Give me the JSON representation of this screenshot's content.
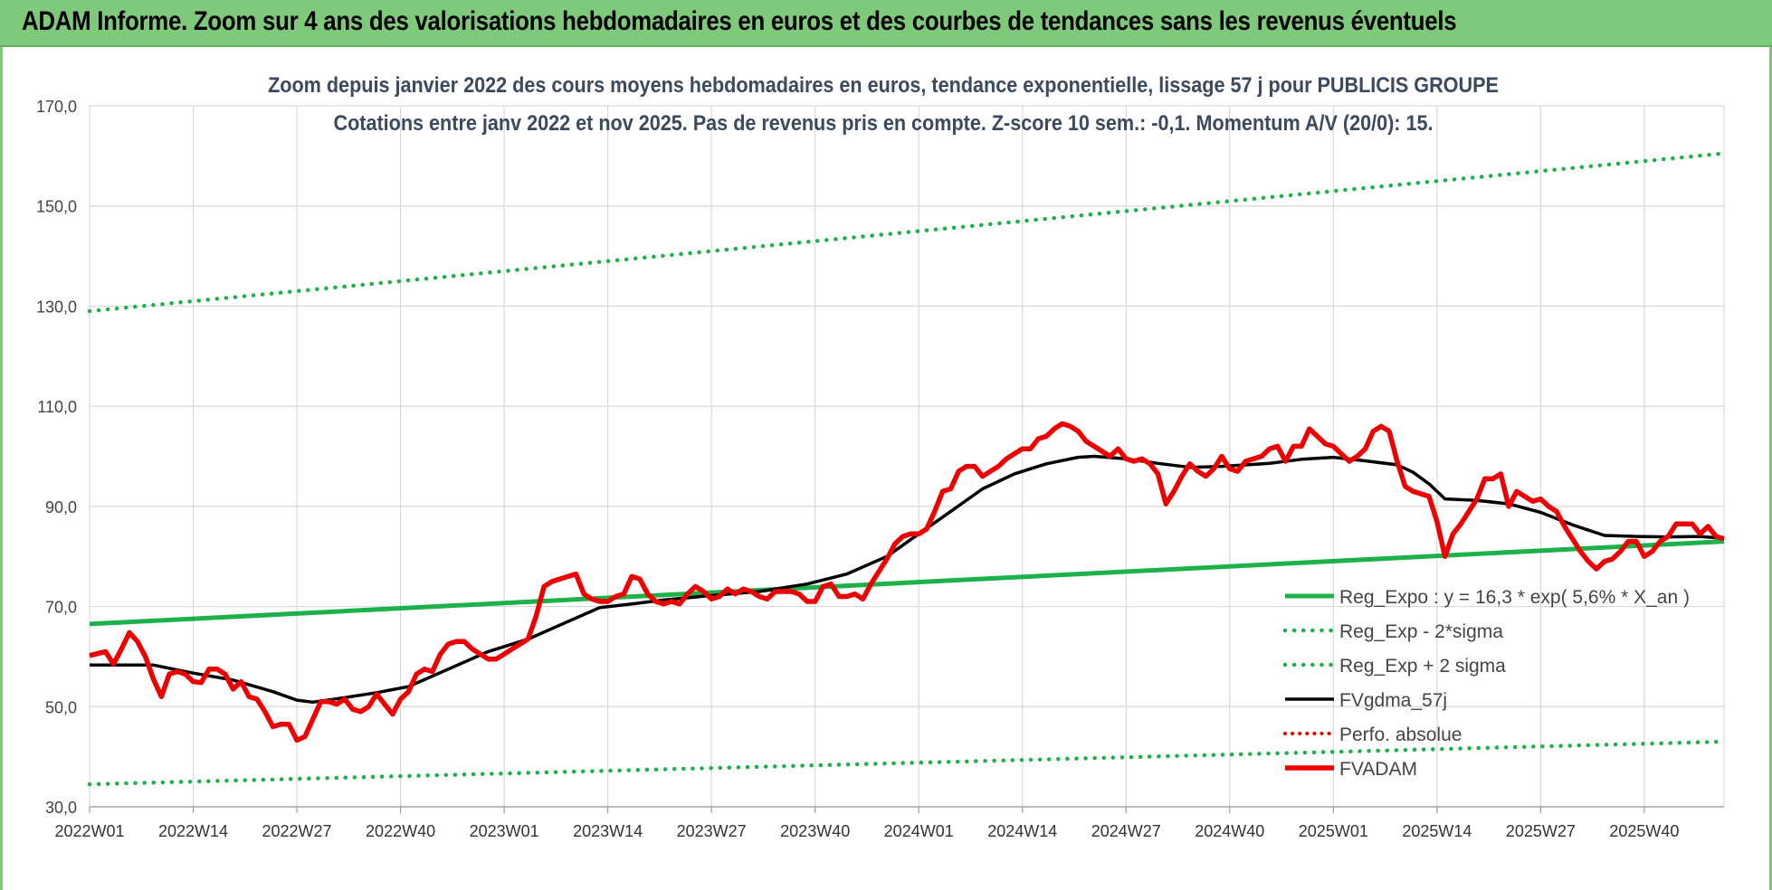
{
  "header": {
    "banner_title": "ADAM Informe. Zoom sur 4 ans des valorisations hebdomadaires en euros et des courbes de tendances sans les revenus éventuels"
  },
  "chart_data": {
    "type": "line",
    "title_line1": "Zoom depuis janvier 2022 des cours moyens hebdomadaires en euros, tendance exponentielle, lissage 57 j pour PUBLICIS GROUPE",
    "title_line2": "Cotations entre janv 2022 et nov 2025. Pas de revenus pris en compte. Z-score 10 sem.: -0,1. Momentum A/V (20/0): 15.",
    "ylim": [
      30,
      170
    ],
    "y_ticks": [
      "30,0",
      "50,0",
      "70,0",
      "90,0",
      "110,0",
      "130,0",
      "150,0",
      "170,0"
    ],
    "x_ticks": [
      "2022W01",
      "2022W14",
      "2022W27",
      "2022W40",
      "2023W01",
      "2023W14",
      "2023W27",
      "2023W40",
      "2024W01",
      "2024W14",
      "2024W27",
      "2024W40",
      "2025W01",
      "2025W14",
      "2025W27",
      "2025W40"
    ],
    "x_tick_weeks": [
      0,
      13,
      26,
      39,
      52,
      65,
      78,
      91,
      104,
      117,
      130,
      143,
      156,
      169,
      182,
      195
    ],
    "x_range_weeks": [
      0,
      205
    ],
    "grid": "vertical and horizontal light gray",
    "legend_position": "bottom-right",
    "colors": {
      "reg_expo": "#1db14a",
      "reg_minus": "#1db14a",
      "reg_plus": "#1db14a",
      "fvgdma": "#000000",
      "perfo": "#e00000",
      "fvadam": "#ee0000",
      "grid": "#d9d9d9"
    },
    "series": [
      {
        "name": "Reg_Expo : y = 16,3 * exp( 5,6% *  X_an )",
        "style": "solid-thick",
        "x": [
          0,
          205
        ],
        "values": [
          66.5,
          83.0
        ]
      },
      {
        "name": "Reg_Exp - 2*sigma",
        "style": "dotted",
        "x": [
          0,
          205
        ],
        "values": [
          34.5,
          43.0
        ]
      },
      {
        "name": "Reg_Exp + 2 sigma",
        "style": "dotted",
        "x": [
          0,
          205
        ],
        "values": [
          129.0,
          160.5
        ]
      },
      {
        "name": "FVgdma_57j",
        "style": "solid-medium",
        "x": [
          0,
          8,
          13,
          18,
          23,
          26,
          28,
          32,
          36,
          40,
          45,
          50,
          55,
          60,
          64,
          68,
          72,
          78,
          84,
          90,
          95,
          100,
          104,
          108,
          112,
          116,
          120,
          124,
          126,
          130,
          134,
          138,
          142,
          148,
          152,
          156,
          160,
          164,
          166,
          168,
          170,
          174,
          178,
          182,
          186,
          190,
          194,
          198,
          202,
          205
        ],
        "values": [
          58.3,
          58.3,
          56.7,
          55.3,
          53.0,
          51.3,
          50.9,
          51.8,
          52.8,
          54.0,
          57.5,
          61.0,
          63.5,
          67.0,
          69.8,
          70.5,
          71.3,
          72.2,
          73.0,
          74.5,
          76.5,
          80.0,
          84.5,
          89.0,
          93.5,
          96.5,
          98.5,
          99.8,
          100.0,
          99.5,
          98.6,
          97.8,
          98.0,
          98.6,
          99.4,
          99.8,
          99.1,
          98.3,
          96.8,
          94.5,
          91.5,
          91.2,
          90.5,
          88.8,
          86.3,
          84.2,
          84.0,
          83.9,
          84.0,
          83.6
        ],
        "_": 0
      },
      {
        "name": "Perfo. absolue",
        "style": "dotted-red",
        "x": [],
        "values": []
      },
      {
        "name": "FVADAM",
        "style": "solid-thick-red",
        "x": [
          0,
          2,
          3,
          4,
          5,
          6,
          7,
          8,
          9,
          10,
          11,
          12,
          13,
          14,
          15,
          16,
          17,
          18,
          19,
          20,
          21,
          22,
          23,
          24,
          25,
          26,
          27,
          28,
          29,
          30,
          31,
          32,
          33,
          34,
          35,
          36,
          37,
          38,
          39,
          40,
          41,
          42,
          43,
          44,
          45,
          46,
          47,
          48,
          49,
          50,
          51,
          52,
          53,
          54,
          55,
          56,
          57,
          58,
          59,
          60,
          61,
          62,
          63,
          64,
          65,
          66,
          67,
          68,
          69,
          70,
          71,
          72,
          73,
          74,
          75,
          76,
          77,
          78,
          79,
          80,
          81,
          82,
          83,
          84,
          85,
          86,
          87,
          88,
          89,
          90,
          91,
          92,
          93,
          94,
          95,
          96,
          97,
          98,
          99,
          100,
          101,
          102,
          103,
          104,
          105,
          106,
          107,
          108,
          109,
          110,
          111,
          112,
          113,
          114,
          115,
          116,
          117,
          118,
          119,
          120,
          121,
          122,
          123,
          124,
          125,
          126,
          127,
          128,
          129,
          130,
          131,
          132,
          133,
          134,
          135,
          136,
          137,
          138,
          139,
          140,
          141,
          142,
          143,
          144,
          145,
          146,
          147,
          148,
          149,
          150,
          151,
          152,
          153,
          154,
          155,
          156,
          157,
          158,
          159,
          160,
          161,
          162,
          163,
          164,
          165,
          166,
          167,
          168,
          169,
          170,
          171,
          172,
          173,
          174,
          175,
          176,
          177,
          178,
          179,
          180,
          181,
          182,
          183,
          184,
          185,
          186,
          187,
          188,
          189,
          190,
          191,
          192,
          193,
          194,
          195,
          196,
          197,
          198,
          199,
          200,
          201,
          202,
          203,
          204,
          205
        ],
        "values": [
          60.2,
          61.0,
          58.5,
          61.5,
          64.8,
          63.0,
          60.0,
          55.5,
          52.0,
          56.5,
          57.0,
          56.5,
          55.0,
          54.8,
          57.5,
          57.5,
          56.5,
          53.5,
          55.0,
          52.0,
          51.5,
          49.0,
          46.0,
          46.5,
          46.5,
          43.3,
          44.0,
          47.5,
          51.0,
          51.0,
          50.5,
          51.5,
          49.5,
          49.0,
          50.0,
          52.5,
          50.5,
          48.5,
          51.5,
          53.0,
          56.5,
          57.5,
          57.0,
          60.5,
          62.5,
          63.0,
          63.0,
          61.5,
          60.5,
          59.5,
          59.5,
          60.5,
          61.5,
          62.5,
          63.5,
          68.0,
          74.0,
          75.0,
          75.5,
          76.0,
          76.5,
          72.5,
          71.5,
          71.0,
          71.0,
          72.0,
          72.5,
          76.0,
          75.5,
          72.5,
          71.0,
          70.5,
          71.0,
          70.5,
          72.5,
          74.0,
          73.0,
          71.5,
          72.0,
          73.5,
          72.5,
          73.5,
          73.0,
          72.0,
          71.5,
          73.0,
          73.0,
          73.0,
          72.5,
          71.0,
          71.0,
          74.0,
          74.5,
          72.0,
          72.0,
          72.5,
          71.5,
          74.5,
          77.0,
          79.5,
          82.5,
          84.0,
          84.5,
          84.5,
          85.5,
          89.0,
          93.0,
          93.5,
          97.0,
          98.0,
          98.0,
          96.0,
          97.0,
          98.0,
          99.5,
          100.5,
          101.5,
          101.5,
          103.5,
          104.0,
          105.5,
          106.5,
          106.0,
          105.0,
          103.0,
          102.0,
          101.0,
          100.0,
          101.5,
          99.5,
          99.0,
          99.5,
          98.5,
          96.5,
          90.5,
          93.0,
          96.0,
          98.5,
          97.0,
          96.0,
          97.5,
          100.0,
          97.5,
          97.0,
          99.0,
          99.5,
          100.0,
          101.5,
          102.0,
          99.0,
          102.0,
          102.0,
          105.5,
          104.0,
          102.5,
          102.0,
          100.5,
          99.0,
          100.0,
          101.5,
          105.0,
          106.0,
          105.0,
          99.0,
          94.0,
          93.0,
          92.5,
          92.0,
          87.0,
          80.0,
          84.5,
          86.5,
          89.0,
          91.5,
          95.5,
          95.5,
          96.5,
          90.0,
          93.0,
          92.0,
          91.0,
          91.5,
          90.0,
          89.0,
          86.0,
          83.5,
          81.0,
          79.0,
          77.5,
          79.0,
          79.5,
          81.0,
          83.0,
          83.0,
          80.0,
          81.0,
          83.0,
          84.0,
          86.5,
          86.5,
          86.5,
          84.5,
          86.0,
          84.0,
          83.5
        ]
      }
    ]
  }
}
